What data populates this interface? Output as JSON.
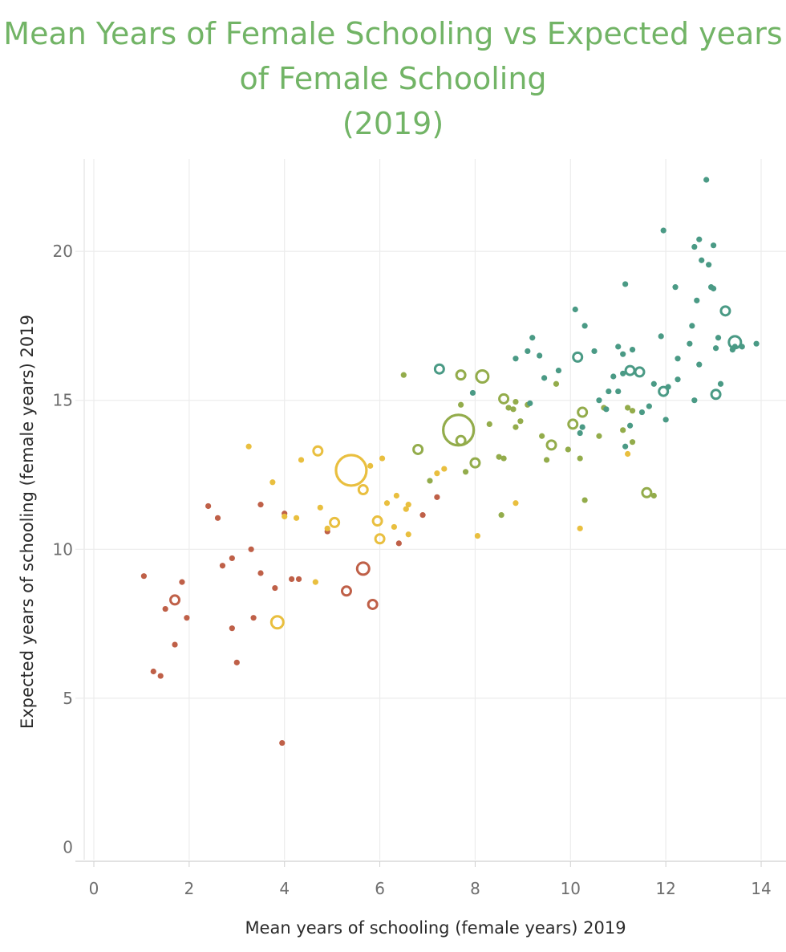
{
  "chart_data": {
    "type": "scatter",
    "title_lines": [
      "Mean Years of Female Schooling vs Expected years",
      "of Female Schooling",
      "(2019)"
    ],
    "xlabel": "Mean years of schooling (female years) 2019",
    "ylabel": "Expected years of schooling (female years) 2019",
    "xlim": [
      -0.2,
      14.6
    ],
    "ylim": [
      -0.5,
      23.5
    ],
    "x_ticks": [
      0,
      2,
      4,
      6,
      8,
      10,
      12,
      14
    ],
    "y_ticks": [
      0,
      5,
      10,
      15,
      20
    ],
    "x_tick_labels": [
      "0",
      "2",
      "4",
      "6",
      "8",
      "10",
      "12",
      "14"
    ],
    "y_tick_labels": [
      "0",
      "5",
      "10",
      "15",
      "20"
    ],
    "grid": true,
    "legend": "none",
    "colors": {
      "red": "#bf6048",
      "yellow": "#e9bf3f",
      "olive": "#93ac4b",
      "teal": "#4a9a85"
    },
    "points": [
      {
        "x": 1.05,
        "y": 9.1,
        "c": "red",
        "s": 0
      },
      {
        "x": 1.25,
        "y": 5.9,
        "c": "red",
        "s": 0
      },
      {
        "x": 1.4,
        "y": 5.75,
        "c": "red",
        "s": 0
      },
      {
        "x": 1.5,
        "y": 8.0,
        "c": "red",
        "s": 0
      },
      {
        "x": 1.7,
        "y": 8.3,
        "c": "red",
        "s": 1
      },
      {
        "x": 1.7,
        "y": 6.8,
        "c": "red",
        "s": 0
      },
      {
        "x": 1.85,
        "y": 8.9,
        "c": "red",
        "s": 0
      },
      {
        "x": 1.95,
        "y": 7.7,
        "c": "red",
        "s": 0
      },
      {
        "x": 2.4,
        "y": 11.45,
        "c": "red",
        "s": 0
      },
      {
        "x": 2.6,
        "y": 11.05,
        "c": "red",
        "s": 0
      },
      {
        "x": 2.7,
        "y": 9.45,
        "c": "red",
        "s": 0
      },
      {
        "x": 2.9,
        "y": 9.7,
        "c": "red",
        "s": 0
      },
      {
        "x": 2.9,
        "y": 7.35,
        "c": "red",
        "s": 0
      },
      {
        "x": 3.0,
        "y": 6.2,
        "c": "red",
        "s": 0
      },
      {
        "x": 3.3,
        "y": 10.0,
        "c": "red",
        "s": 0
      },
      {
        "x": 3.35,
        "y": 7.7,
        "c": "red",
        "s": 0
      },
      {
        "x": 3.5,
        "y": 11.5,
        "c": "red",
        "s": 0
      },
      {
        "x": 3.5,
        "y": 9.2,
        "c": "red",
        "s": 0
      },
      {
        "x": 3.8,
        "y": 8.7,
        "c": "red",
        "s": 0
      },
      {
        "x": 3.95,
        "y": 3.5,
        "c": "red",
        "s": 0
      },
      {
        "x": 4.0,
        "y": 11.2,
        "c": "red",
        "s": 0
      },
      {
        "x": 4.15,
        "y": 9.0,
        "c": "red",
        "s": 0
      },
      {
        "x": 4.3,
        "y": 9.0,
        "c": "red",
        "s": 0
      },
      {
        "x": 4.9,
        "y": 10.6,
        "c": "red",
        "s": 0
      },
      {
        "x": 5.3,
        "y": 8.6,
        "c": "red",
        "s": 1
      },
      {
        "x": 5.65,
        "y": 9.35,
        "c": "red",
        "s": 2
      },
      {
        "x": 5.85,
        "y": 8.15,
        "c": "red",
        "s": 1
      },
      {
        "x": 6.4,
        "y": 10.2,
        "c": "red",
        "s": 0
      },
      {
        "x": 6.9,
        "y": 11.15,
        "c": "red",
        "s": 0
      },
      {
        "x": 7.2,
        "y": 11.75,
        "c": "red",
        "s": 0
      },
      {
        "x": 3.25,
        "y": 13.45,
        "c": "yellow",
        "s": 0
      },
      {
        "x": 3.75,
        "y": 12.25,
        "c": "yellow",
        "s": 0
      },
      {
        "x": 3.85,
        "y": 7.55,
        "c": "yellow",
        "s": 2
      },
      {
        "x": 4.0,
        "y": 11.1,
        "c": "yellow",
        "s": 0
      },
      {
        "x": 4.25,
        "y": 11.05,
        "c": "yellow",
        "s": 0
      },
      {
        "x": 4.35,
        "y": 13.0,
        "c": "yellow",
        "s": 0
      },
      {
        "x": 4.65,
        "y": 8.9,
        "c": "yellow",
        "s": 0
      },
      {
        "x": 4.7,
        "y": 13.3,
        "c": "yellow",
        "s": 1
      },
      {
        "x": 4.75,
        "y": 11.4,
        "c": "yellow",
        "s": 0
      },
      {
        "x": 4.9,
        "y": 10.7,
        "c": "yellow",
        "s": 0
      },
      {
        "x": 5.05,
        "y": 10.9,
        "c": "yellow",
        "s": 1
      },
      {
        "x": 5.4,
        "y": 12.65,
        "c": "yellow",
        "s": 4
      },
      {
        "x": 5.65,
        "y": 12.0,
        "c": "yellow",
        "s": 1
      },
      {
        "x": 5.8,
        "y": 12.8,
        "c": "yellow",
        "s": 0
      },
      {
        "x": 5.95,
        "y": 10.95,
        "c": "yellow",
        "s": 1
      },
      {
        "x": 6.0,
        "y": 10.35,
        "c": "yellow",
        "s": 1
      },
      {
        "x": 6.05,
        "y": 13.05,
        "c": "yellow",
        "s": 0
      },
      {
        "x": 6.15,
        "y": 11.55,
        "c": "yellow",
        "s": 0
      },
      {
        "x": 6.3,
        "y": 10.75,
        "c": "yellow",
        "s": 0
      },
      {
        "x": 6.35,
        "y": 11.8,
        "c": "yellow",
        "s": 0
      },
      {
        "x": 6.55,
        "y": 11.35,
        "c": "yellow",
        "s": 0
      },
      {
        "x": 6.6,
        "y": 11.5,
        "c": "yellow",
        "s": 0
      },
      {
        "x": 6.6,
        "y": 10.5,
        "c": "yellow",
        "s": 0
      },
      {
        "x": 7.2,
        "y": 12.55,
        "c": "yellow",
        "s": 0
      },
      {
        "x": 7.35,
        "y": 12.7,
        "c": "yellow",
        "s": 0
      },
      {
        "x": 8.05,
        "y": 10.45,
        "c": "yellow",
        "s": 0
      },
      {
        "x": 8.85,
        "y": 11.55,
        "c": "yellow",
        "s": 0
      },
      {
        "x": 10.2,
        "y": 10.7,
        "c": "yellow",
        "s": 0
      },
      {
        "x": 11.2,
        "y": 13.2,
        "c": "yellow",
        "s": 0
      },
      {
        "x": 6.5,
        "y": 15.85,
        "c": "olive",
        "s": 0
      },
      {
        "x": 6.8,
        "y": 13.35,
        "c": "olive",
        "s": 1
      },
      {
        "x": 7.05,
        "y": 12.3,
        "c": "olive",
        "s": 0
      },
      {
        "x": 7.65,
        "y": 14.0,
        "c": "olive",
        "s": 4
      },
      {
        "x": 7.7,
        "y": 13.65,
        "c": "olive",
        "s": 1
      },
      {
        "x": 7.7,
        "y": 14.85,
        "c": "olive",
        "s": 0
      },
      {
        "x": 7.7,
        "y": 15.85,
        "c": "olive",
        "s": 1
      },
      {
        "x": 7.8,
        "y": 12.6,
        "c": "olive",
        "s": 0
      },
      {
        "x": 8.0,
        "y": 12.9,
        "c": "olive",
        "s": 1
      },
      {
        "x": 8.15,
        "y": 15.8,
        "c": "olive",
        "s": 2
      },
      {
        "x": 8.3,
        "y": 14.2,
        "c": "olive",
        "s": 0
      },
      {
        "x": 8.5,
        "y": 13.1,
        "c": "olive",
        "s": 0
      },
      {
        "x": 8.55,
        "y": 11.15,
        "c": "olive",
        "s": 0
      },
      {
        "x": 8.6,
        "y": 13.05,
        "c": "olive",
        "s": 0
      },
      {
        "x": 8.6,
        "y": 15.05,
        "c": "olive",
        "s": 1
      },
      {
        "x": 8.7,
        "y": 14.75,
        "c": "olive",
        "s": 0
      },
      {
        "x": 8.8,
        "y": 14.7,
        "c": "olive",
        "s": 0
      },
      {
        "x": 8.85,
        "y": 14.95,
        "c": "olive",
        "s": 0
      },
      {
        "x": 8.85,
        "y": 14.1,
        "c": "olive",
        "s": 0
      },
      {
        "x": 8.95,
        "y": 14.3,
        "c": "olive",
        "s": 0
      },
      {
        "x": 9.1,
        "y": 14.85,
        "c": "olive",
        "s": 0
      },
      {
        "x": 9.4,
        "y": 13.8,
        "c": "olive",
        "s": 0
      },
      {
        "x": 9.5,
        "y": 13.0,
        "c": "olive",
        "s": 0
      },
      {
        "x": 9.6,
        "y": 13.5,
        "c": "olive",
        "s": 1
      },
      {
        "x": 9.7,
        "y": 15.55,
        "c": "olive",
        "s": 0
      },
      {
        "x": 9.95,
        "y": 13.35,
        "c": "olive",
        "s": 0
      },
      {
        "x": 10.05,
        "y": 14.2,
        "c": "olive",
        "s": 1
      },
      {
        "x": 10.2,
        "y": 13.05,
        "c": "olive",
        "s": 0
      },
      {
        "x": 10.25,
        "y": 14.6,
        "c": "olive",
        "s": 1
      },
      {
        "x": 10.3,
        "y": 11.65,
        "c": "olive",
        "s": 0
      },
      {
        "x": 10.6,
        "y": 13.8,
        "c": "olive",
        "s": 0
      },
      {
        "x": 10.7,
        "y": 14.75,
        "c": "olive",
        "s": 0
      },
      {
        "x": 11.1,
        "y": 14.0,
        "c": "olive",
        "s": 0
      },
      {
        "x": 11.2,
        "y": 14.75,
        "c": "olive",
        "s": 0
      },
      {
        "x": 11.3,
        "y": 13.6,
        "c": "olive",
        "s": 0
      },
      {
        "x": 11.3,
        "y": 14.65,
        "c": "olive",
        "s": 0
      },
      {
        "x": 11.6,
        "y": 11.9,
        "c": "olive",
        "s": 1
      },
      {
        "x": 11.75,
        "y": 11.8,
        "c": "olive",
        "s": 0
      },
      {
        "x": 7.25,
        "y": 16.05,
        "c": "teal",
        "s": 1
      },
      {
        "x": 7.95,
        "y": 15.25,
        "c": "teal",
        "s": 0
      },
      {
        "x": 8.85,
        "y": 16.4,
        "c": "teal",
        "s": 0
      },
      {
        "x": 9.1,
        "y": 16.65,
        "c": "teal",
        "s": 0
      },
      {
        "x": 9.15,
        "y": 14.9,
        "c": "teal",
        "s": 0
      },
      {
        "x": 9.2,
        "y": 17.1,
        "c": "teal",
        "s": 0
      },
      {
        "x": 9.35,
        "y": 16.5,
        "c": "teal",
        "s": 0
      },
      {
        "x": 9.45,
        "y": 15.75,
        "c": "teal",
        "s": 0
      },
      {
        "x": 9.75,
        "y": 16.0,
        "c": "teal",
        "s": 0
      },
      {
        "x": 10.1,
        "y": 18.05,
        "c": "teal",
        "s": 0
      },
      {
        "x": 10.15,
        "y": 16.45,
        "c": "teal",
        "s": 1
      },
      {
        "x": 10.2,
        "y": 13.9,
        "c": "teal",
        "s": 0
      },
      {
        "x": 10.25,
        "y": 14.1,
        "c": "teal",
        "s": 0
      },
      {
        "x": 10.3,
        "y": 17.5,
        "c": "teal",
        "s": 0
      },
      {
        "x": 10.5,
        "y": 16.65,
        "c": "teal",
        "s": 0
      },
      {
        "x": 10.6,
        "y": 15.0,
        "c": "teal",
        "s": 0
      },
      {
        "x": 10.75,
        "y": 14.7,
        "c": "teal",
        "s": 0
      },
      {
        "x": 10.8,
        "y": 15.3,
        "c": "teal",
        "s": 0
      },
      {
        "x": 10.9,
        "y": 15.8,
        "c": "teal",
        "s": 0
      },
      {
        "x": 11.0,
        "y": 15.3,
        "c": "teal",
        "s": 0
      },
      {
        "x": 11.0,
        "y": 16.8,
        "c": "teal",
        "s": 0
      },
      {
        "x": 11.1,
        "y": 16.55,
        "c": "teal",
        "s": 0
      },
      {
        "x": 11.1,
        "y": 15.9,
        "c": "teal",
        "s": 0
      },
      {
        "x": 11.15,
        "y": 18.9,
        "c": "teal",
        "s": 0
      },
      {
        "x": 11.15,
        "y": 13.45,
        "c": "teal",
        "s": 0
      },
      {
        "x": 11.25,
        "y": 16.0,
        "c": "teal",
        "s": 1
      },
      {
        "x": 11.25,
        "y": 14.15,
        "c": "teal",
        "s": 0
      },
      {
        "x": 11.3,
        "y": 16.7,
        "c": "teal",
        "s": 0
      },
      {
        "x": 11.45,
        "y": 15.95,
        "c": "teal",
        "s": 1
      },
      {
        "x": 11.5,
        "y": 14.6,
        "c": "teal",
        "s": 0
      },
      {
        "x": 11.65,
        "y": 14.8,
        "c": "teal",
        "s": 0
      },
      {
        "x": 11.75,
        "y": 15.55,
        "c": "teal",
        "s": 0
      },
      {
        "x": 11.9,
        "y": 17.15,
        "c": "teal",
        "s": 0
      },
      {
        "x": 11.95,
        "y": 15.3,
        "c": "teal",
        "s": 1
      },
      {
        "x": 11.95,
        "y": 20.7,
        "c": "teal",
        "s": 0
      },
      {
        "x": 12.0,
        "y": 14.35,
        "c": "teal",
        "s": 0
      },
      {
        "x": 12.05,
        "y": 15.45,
        "c": "teal",
        "s": 0
      },
      {
        "x": 12.2,
        "y": 18.8,
        "c": "teal",
        "s": 0
      },
      {
        "x": 12.25,
        "y": 15.7,
        "c": "teal",
        "s": 0
      },
      {
        "x": 12.25,
        "y": 16.4,
        "c": "teal",
        "s": 0
      },
      {
        "x": 12.5,
        "y": 16.9,
        "c": "teal",
        "s": 0
      },
      {
        "x": 12.55,
        "y": 17.5,
        "c": "teal",
        "s": 0
      },
      {
        "x": 12.6,
        "y": 20.15,
        "c": "teal",
        "s": 0
      },
      {
        "x": 12.6,
        "y": 15.0,
        "c": "teal",
        "s": 0
      },
      {
        "x": 12.65,
        "y": 18.35,
        "c": "teal",
        "s": 0
      },
      {
        "x": 12.7,
        "y": 20.4,
        "c": "teal",
        "s": 0
      },
      {
        "x": 12.7,
        "y": 16.2,
        "c": "teal",
        "s": 0
      },
      {
        "x": 12.75,
        "y": 19.7,
        "c": "teal",
        "s": 0
      },
      {
        "x": 12.85,
        "y": 22.4,
        "c": "teal",
        "s": 0
      },
      {
        "x": 12.9,
        "y": 19.55,
        "c": "teal",
        "s": 0
      },
      {
        "x": 12.95,
        "y": 18.8,
        "c": "teal",
        "s": 0
      },
      {
        "x": 13.0,
        "y": 20.2,
        "c": "teal",
        "s": 0
      },
      {
        "x": 13.0,
        "y": 18.75,
        "c": "teal",
        "s": 0
      },
      {
        "x": 13.05,
        "y": 16.75,
        "c": "teal",
        "s": 0
      },
      {
        "x": 13.05,
        "y": 15.2,
        "c": "teal",
        "s": 1
      },
      {
        "x": 13.1,
        "y": 17.1,
        "c": "teal",
        "s": 0
      },
      {
        "x": 13.15,
        "y": 15.55,
        "c": "teal",
        "s": 0
      },
      {
        "x": 13.25,
        "y": 18.0,
        "c": "teal",
        "s": 1
      },
      {
        "x": 13.4,
        "y": 16.7,
        "c": "teal",
        "s": 0
      },
      {
        "x": 13.45,
        "y": 16.95,
        "c": "teal",
        "s": 2
      },
      {
        "x": 13.45,
        "y": 16.8,
        "c": "teal",
        "s": 0
      },
      {
        "x": 13.6,
        "y": 16.8,
        "c": "teal",
        "s": 0
      },
      {
        "x": 13.9,
        "y": 16.9,
        "c": "teal",
        "s": 0
      }
    ]
  }
}
